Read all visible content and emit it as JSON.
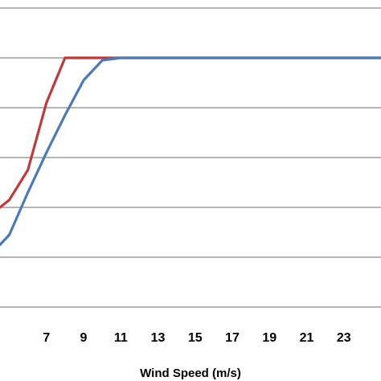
{
  "chart_data": {
    "type": "line",
    "title": "",
    "xlabel": "Wind Speed (m/s)",
    "ylabel": "",
    "x_tick_labels": [
      "7",
      "9",
      "11",
      "13",
      "15",
      "17",
      "19",
      "21",
      "23"
    ],
    "xlim": [
      4.5,
      25.0
    ],
    "ylim": [
      0,
      6
    ],
    "grid": true,
    "legend": "none",
    "series": [
      {
        "color": "#c0393b",
        "x": [
          4.5,
          5.0,
          6.0,
          7.0,
          8.0,
          9.0,
          10.0,
          11.0,
          12.0,
          14.0,
          16.0,
          18.0,
          20.0,
          22.0,
          24.0,
          25.0
        ],
        "y": [
          2.0,
          2.15,
          2.75,
          4.1,
          5.0,
          5.0,
          5.0,
          5.0,
          5.0,
          5.0,
          5.0,
          5.0,
          5.0,
          5.0,
          5.0,
          5.0
        ]
      },
      {
        "color": "#4a7bb7",
        "x": [
          4.5,
          5.0,
          6.0,
          7.0,
          8.0,
          9.0,
          10.0,
          11.0,
          12.0,
          14.0,
          16.0,
          18.0,
          20.0,
          22.0,
          24.0,
          25.0
        ],
        "y": [
          1.25,
          1.45,
          2.3,
          3.1,
          3.85,
          4.55,
          4.95,
          5.0,
          5.0,
          5.0,
          5.0,
          5.0,
          5.0,
          5.0,
          5.0,
          5.0
        ]
      }
    ]
  }
}
